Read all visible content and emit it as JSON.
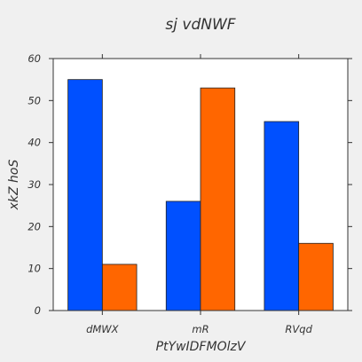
{
  "chart_data": {
    "type": "bar",
    "title": "sj vdNWF",
    "xlabel": "PtYwIDFMOlzV",
    "ylabel": "xkZ hoS",
    "categories": [
      "dMWX",
      "mR",
      "RVqd"
    ],
    "series": [
      {
        "values": [
          55,
          26,
          45
        ],
        "color": "#0050ff"
      },
      {
        "values": [
          11,
          53,
          16
        ],
        "color": "#ff6600"
      }
    ],
    "ylim": [
      0,
      60
    ],
    "yticks": [
      0,
      10,
      20,
      30,
      40,
      50,
      60
    ],
    "ytick_labels": [
      "0",
      "10",
      "20",
      "30",
      "40",
      "50",
      "60"
    ],
    "grid": false,
    "legend": "none",
    "background": "#f0f0f0",
    "plot_background": "#ffffff"
  }
}
